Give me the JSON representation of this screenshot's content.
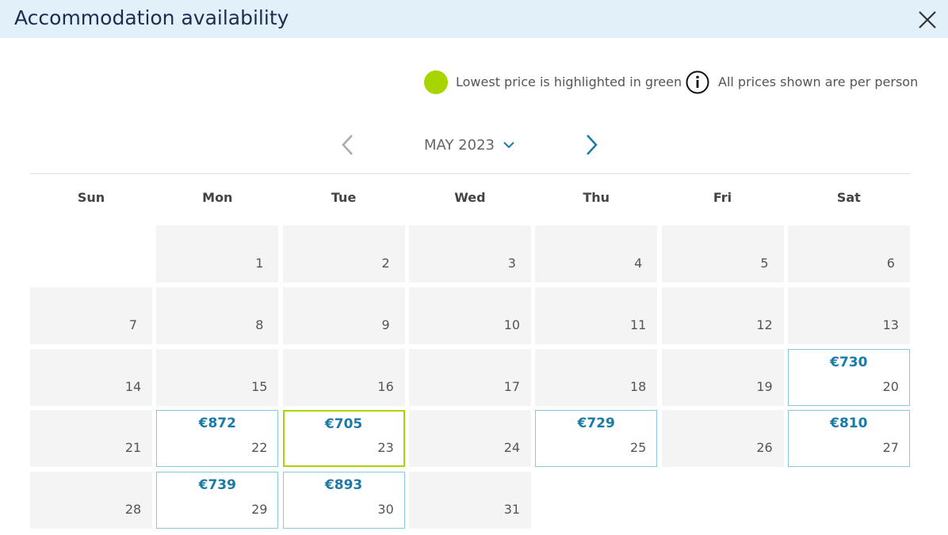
{
  "header": {
    "title": "Accommodation availability"
  },
  "legend": {
    "lowest": "Lowest price is highlighted in green",
    "info": "All prices shown are per person"
  },
  "calendar": {
    "month": "MAY 2023",
    "weekdays": [
      "Sun",
      "Mon",
      "Tue",
      "Wed",
      "Thu",
      "Fri",
      "Sat"
    ],
    "weeks": [
      [
        null,
        {
          "day": 1
        },
        {
          "day": 2
        },
        {
          "day": 3
        },
        {
          "day": 4
        },
        {
          "day": 5
        },
        {
          "day": 6
        }
      ],
      [
        {
          "day": 7
        },
        {
          "day": 8
        },
        {
          "day": 9
        },
        {
          "day": 10
        },
        {
          "day": 11
        },
        {
          "day": 12
        },
        {
          "day": 13
        }
      ],
      [
        {
          "day": 14
        },
        {
          "day": 15
        },
        {
          "day": 16
        },
        {
          "day": 17
        },
        {
          "day": 18
        },
        {
          "day": 19
        },
        {
          "day": 20,
          "price": "€730"
        }
      ],
      [
        {
          "day": 21
        },
        {
          "day": 22,
          "price": "€872"
        },
        {
          "day": 23,
          "price": "€705",
          "lowest": true
        },
        {
          "day": 24
        },
        {
          "day": 25,
          "price": "€729"
        },
        {
          "day": 26
        },
        {
          "day": 27,
          "price": "€810"
        }
      ],
      [
        {
          "day": 28
        },
        {
          "day": 29,
          "price": "€739"
        },
        {
          "day": 30,
          "price": "€893"
        },
        {
          "day": 31
        },
        null,
        null,
        null
      ]
    ]
  }
}
